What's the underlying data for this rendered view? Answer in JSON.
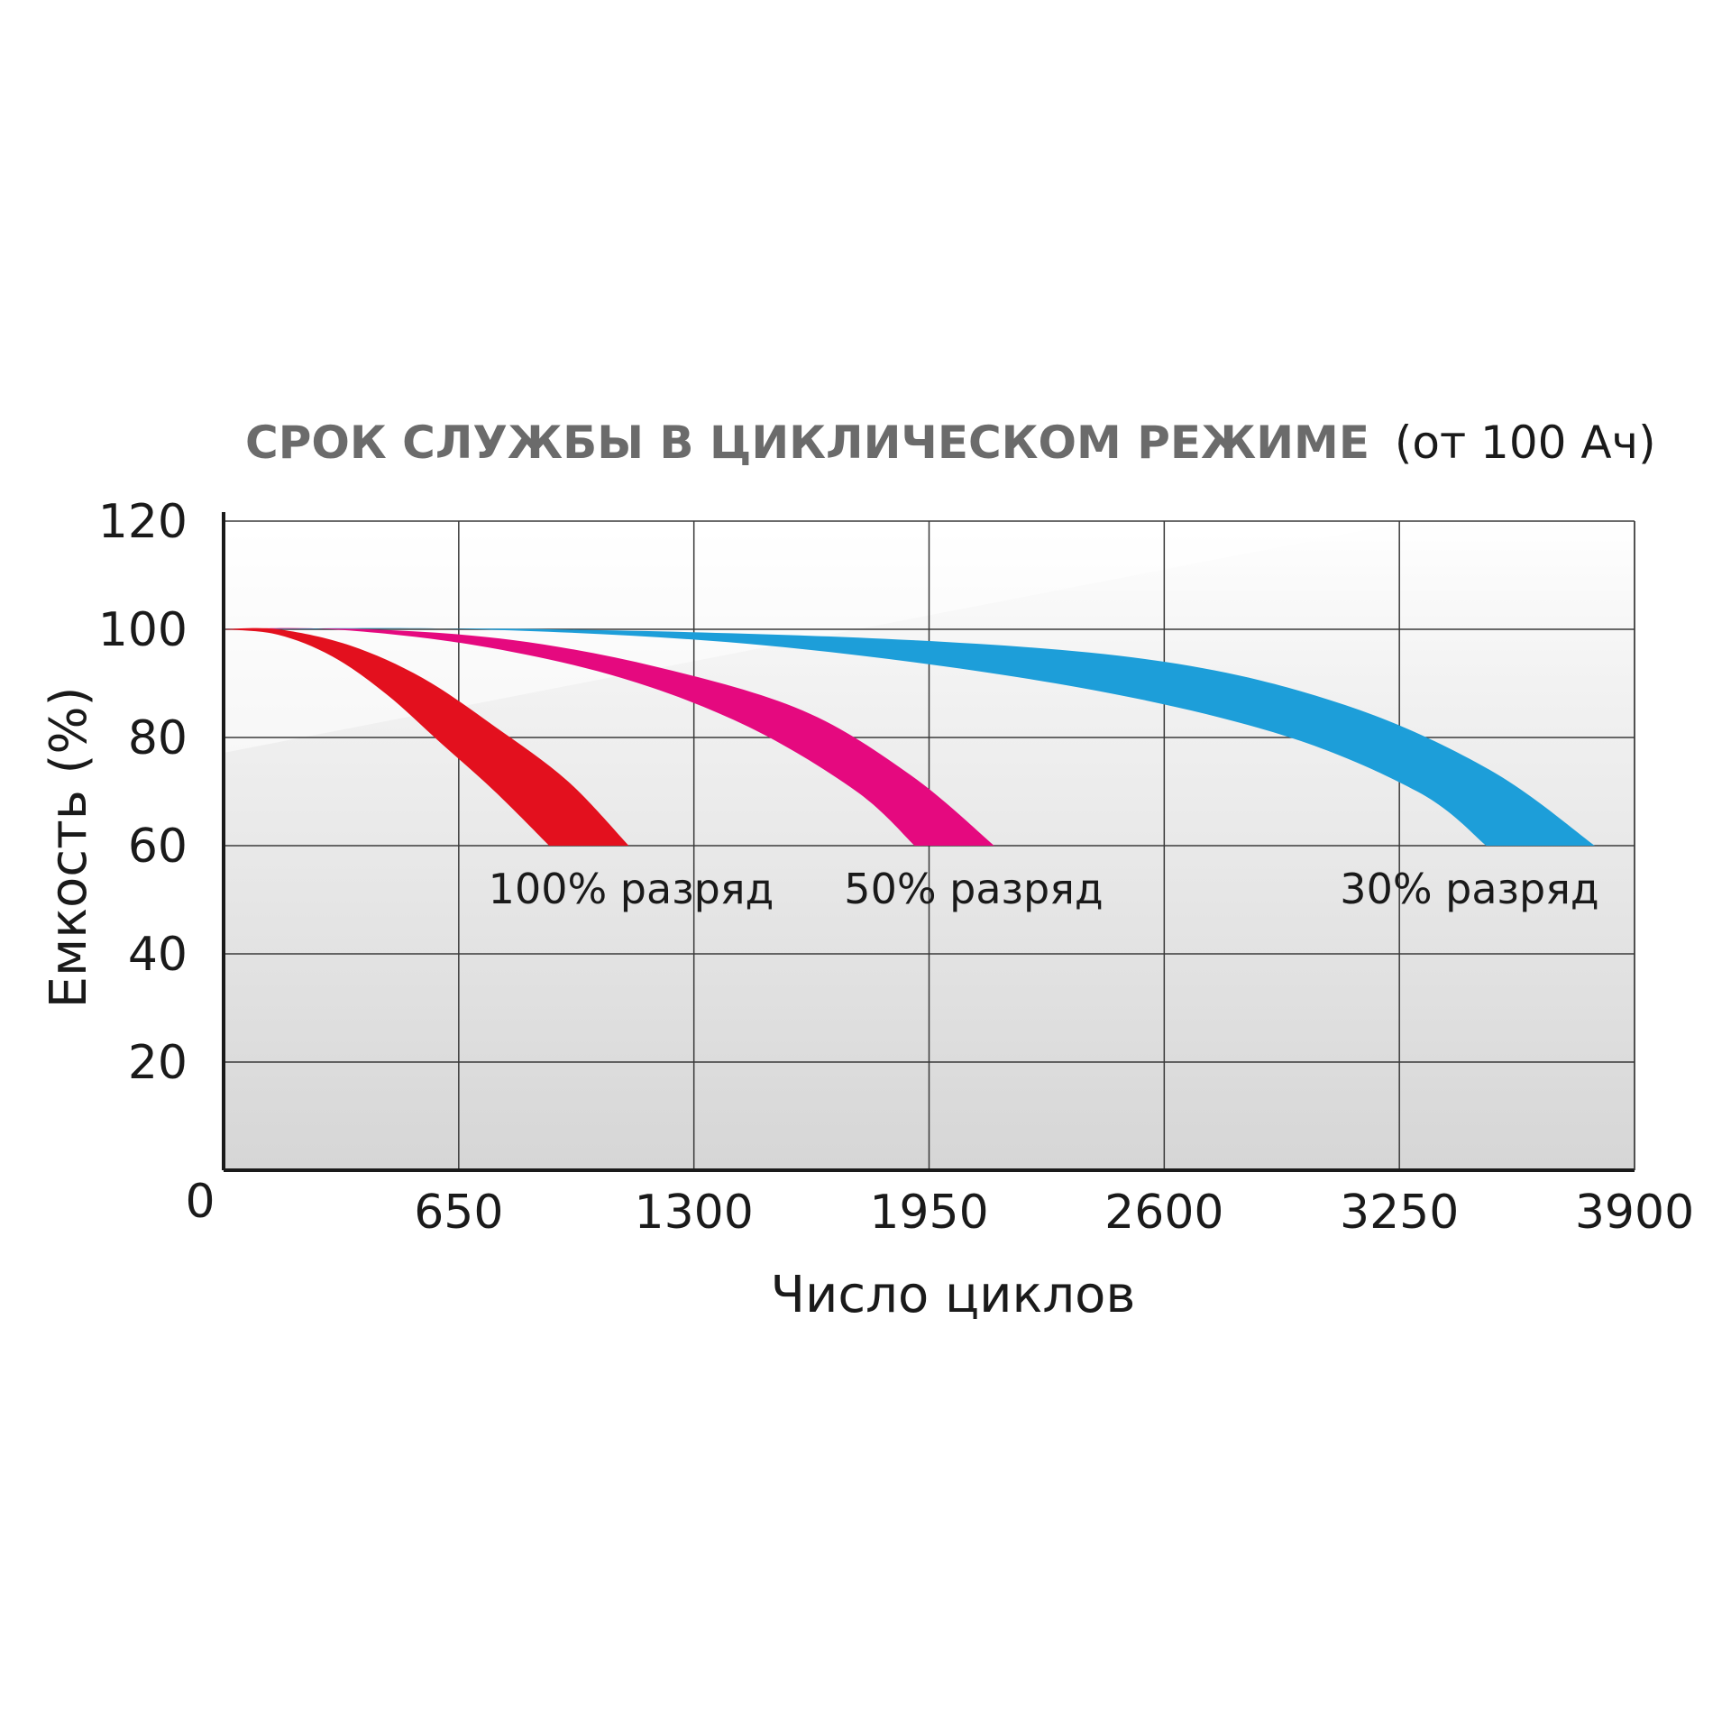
{
  "chart_data": {
    "type": "area",
    "title": "СРОК СЛУЖБЫ В ЦИКЛИЧЕСКОМ РЕЖИМЕ",
    "subtitle": "(от 100 Ач)",
    "xlabel": "Число циклов",
    "ylabel": "Емкость (%)",
    "xlim": [
      0,
      3900
    ],
    "ylim": [
      0,
      120
    ],
    "x_ticks": [
      "0",
      "650",
      "1300",
      "1950",
      "2600",
      "3250",
      "3900"
    ],
    "y_ticks": [
      "20",
      "40",
      "60",
      "80",
      "100",
      "120"
    ],
    "grid": true,
    "series": [
      {
        "name": "100% разряд",
        "color": "#e3101e",
        "upper": [
          [
            0,
            100
          ],
          [
            150,
            100
          ],
          [
            350,
            97
          ],
          [
            550,
            91
          ],
          [
            750,
            82
          ],
          [
            950,
            72
          ],
          [
            1120,
            60
          ]
        ],
        "lower": [
          [
            0,
            100
          ],
          [
            150,
            99
          ],
          [
            300,
            95
          ],
          [
            450,
            88
          ],
          [
            600,
            79
          ],
          [
            750,
            70
          ],
          [
            900,
            60
          ]
        ]
      },
      {
        "name": "50% разряд",
        "color": "#e5097f",
        "upper": [
          [
            0,
            100
          ],
          [
            400,
            100
          ],
          [
            800,
            98
          ],
          [
            1200,
            93
          ],
          [
            1600,
            85
          ],
          [
            1900,
            73
          ],
          [
            2130,
            60
          ]
        ],
        "lower": [
          [
            0,
            100
          ],
          [
            300,
            100
          ],
          [
            700,
            97
          ],
          [
            1100,
            91
          ],
          [
            1450,
            82
          ],
          [
            1750,
            70
          ],
          [
            1910,
            60
          ]
        ]
      },
      {
        "name": "30% разряд",
        "color": "#1d9ed9",
        "upper": [
          [
            0,
            100
          ],
          [
            900,
            100
          ],
          [
            1900,
            98
          ],
          [
            2600,
            94
          ],
          [
            3100,
            86
          ],
          [
            3500,
            74
          ],
          [
            3790,
            60
          ]
        ],
        "lower": [
          [
            0,
            100
          ],
          [
            700,
            100
          ],
          [
            1500,
            97
          ],
          [
            2300,
            90
          ],
          [
            2900,
            81
          ],
          [
            3300,
            70
          ],
          [
            3490,
            60
          ]
        ]
      }
    ],
    "annotations": [
      "100% разряд",
      "50% разряд",
      "30% разряд"
    ]
  }
}
